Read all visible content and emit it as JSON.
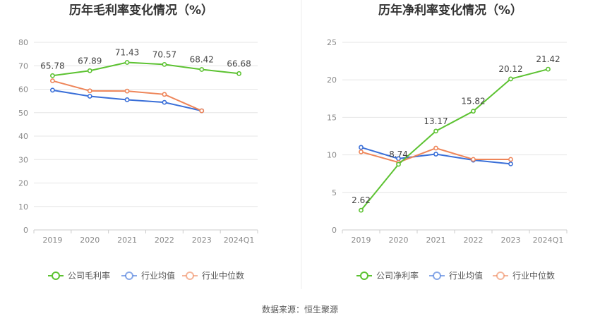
{
  "chart_data": [
    {
      "type": "line",
      "title": "历年毛利率变化情况（%）",
      "categories": [
        "2019",
        "2020",
        "2021",
        "2022",
        "2023",
        "2024Q1"
      ],
      "ylim": [
        0,
        80
      ],
      "yticks": [
        0,
        10,
        20,
        30,
        40,
        50,
        60,
        70,
        80
      ],
      "grid": true,
      "legend_position": "bottom",
      "series": [
        {
          "name": "公司毛利率",
          "color": "#5cc231",
          "values": [
            65.78,
            67.89,
            71.43,
            70.57,
            68.42,
            66.68
          ],
          "labels": [
            "65.78",
            "67.89",
            "71.43",
            "70.57",
            "68.42",
            "66.68"
          ]
        },
        {
          "name": "行业均值",
          "color": "#3a6fd8",
          "values": [
            59.6,
            57.0,
            55.5,
            54.4,
            50.8,
            null
          ],
          "labels": []
        },
        {
          "name": "行业中位数",
          "color": "#ee8559",
          "values": [
            63.6,
            59.3,
            59.2,
            57.8,
            50.8,
            null
          ],
          "labels": []
        }
      ]
    },
    {
      "type": "line",
      "title": "历年净利率变化情况（%）",
      "categories": [
        "2019",
        "2020",
        "2021",
        "2022",
        "2023",
        "2024Q1"
      ],
      "ylim": [
        0,
        25
      ],
      "yticks": [
        0,
        5,
        10,
        15,
        20,
        25
      ],
      "grid": true,
      "legend_position": "bottom",
      "series": [
        {
          "name": "公司净利率",
          "color": "#5cc231",
          "values": [
            2.62,
            8.74,
            13.17,
            15.82,
            20.12,
            21.42
          ],
          "labels": [
            "2.62",
            "8.74",
            "13.17",
            "15.82",
            "20.12",
            "21.42"
          ]
        },
        {
          "name": "行业均值",
          "color": "#3a6fd8",
          "values": [
            11.0,
            9.5,
            10.1,
            9.3,
            8.8,
            null
          ],
          "labels": []
        },
        {
          "name": "行业中位数",
          "color": "#ee8559",
          "values": [
            10.4,
            9.0,
            10.9,
            9.4,
            9.4,
            null
          ],
          "labels": []
        }
      ]
    }
  ],
  "footer": {
    "source": "数据来源：恒生聚源"
  }
}
